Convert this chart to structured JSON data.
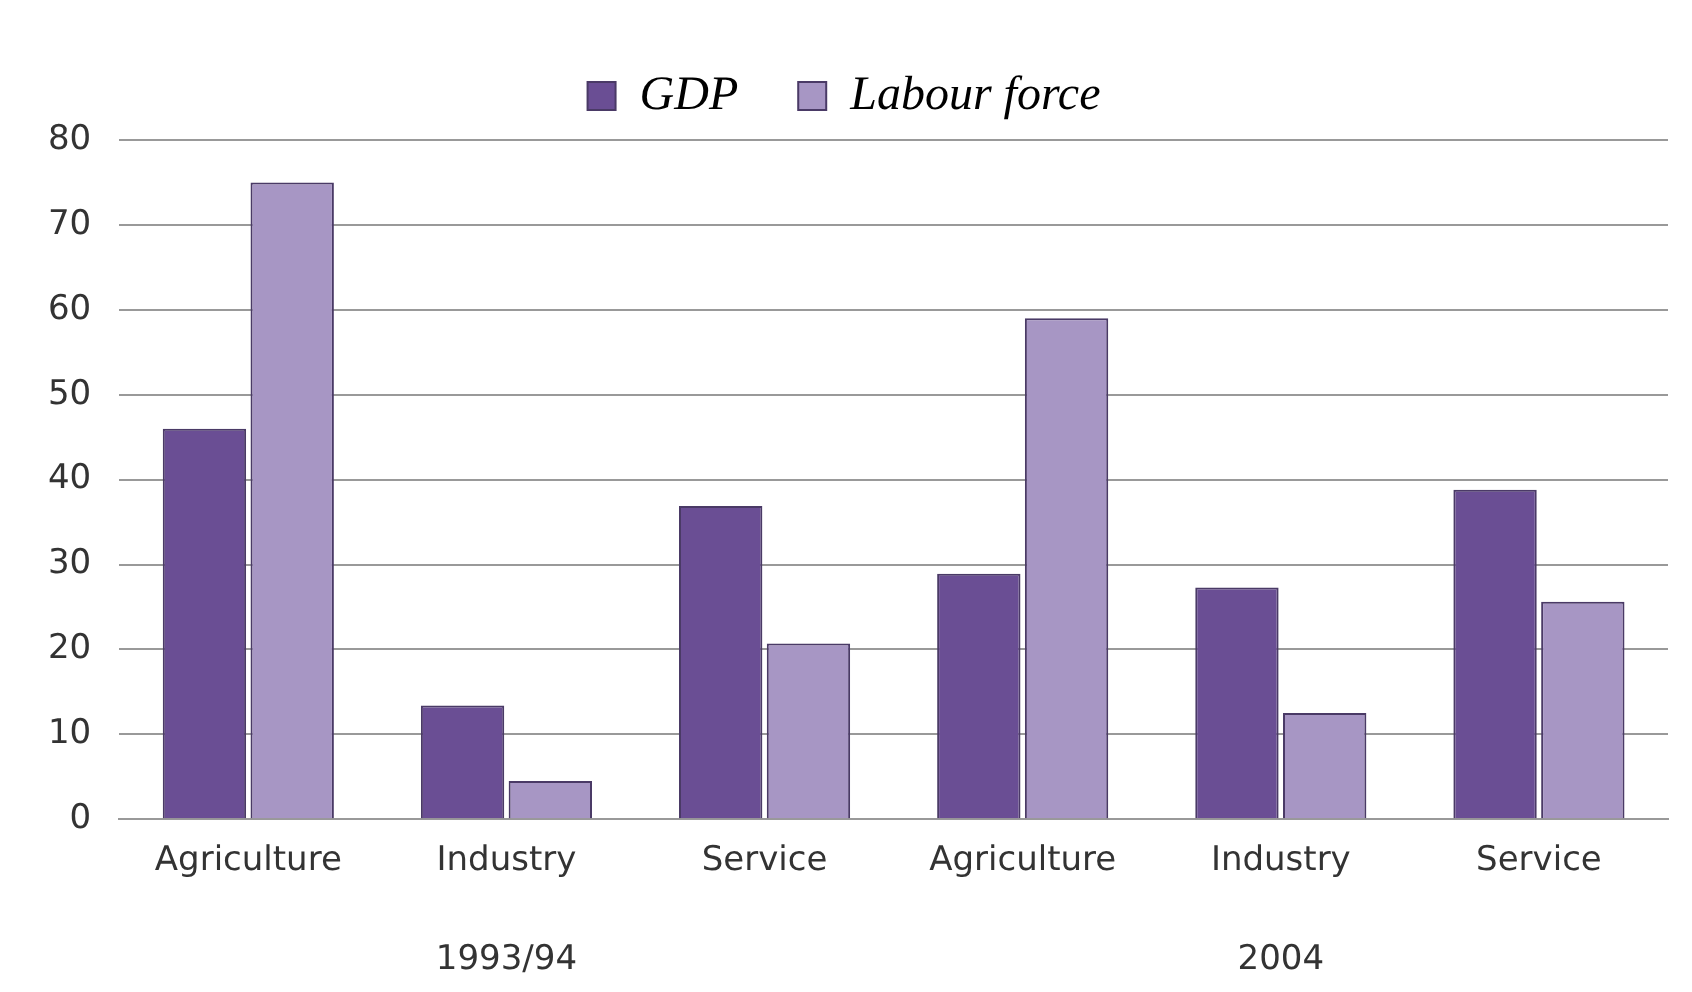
{
  "chart_data": {
    "type": "bar",
    "categories": [
      "Agriculture",
      "Industry",
      "Service",
      "Agriculture",
      "Industry",
      "Service"
    ],
    "series": [
      {
        "name": "GDP",
        "color": "#6a4e94",
        "values": [
          46,
          13.4,
          36.9,
          28.9,
          27.3,
          38.8
        ]
      },
      {
        "name": "Labour force",
        "color": "#a796c4",
        "values": [
          75,
          4.5,
          20.7,
          59,
          12.5,
          25.6
        ]
      }
    ],
    "annotations": [
      "1993/94",
      "2004"
    ],
    "ylim": [
      0,
      80
    ],
    "yticks": [
      0,
      10,
      20,
      30,
      40,
      50,
      60,
      70,
      80
    ],
    "grid": "y",
    "legend": "top"
  }
}
